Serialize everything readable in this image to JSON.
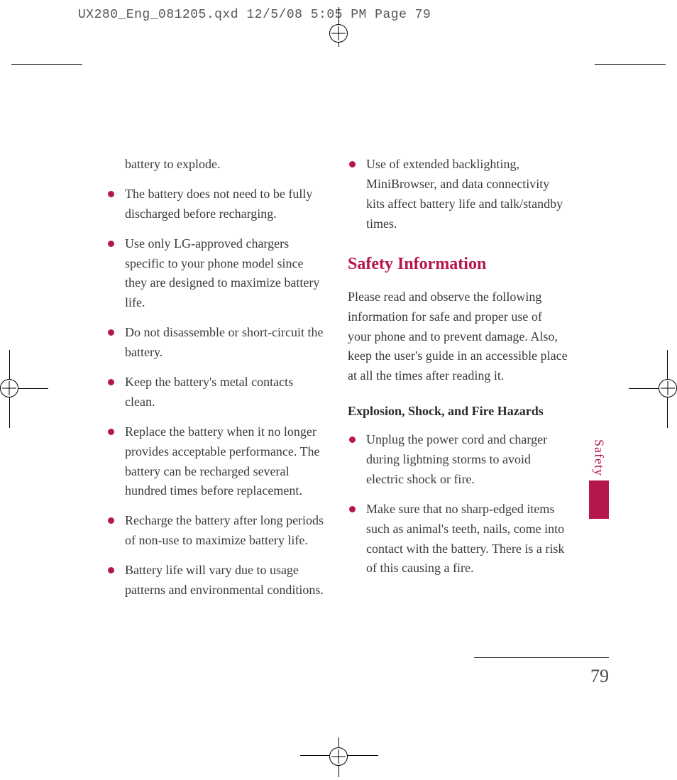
{
  "meta_header": "UX280_Eng_081205.qxd  12/5/08  5:05 PM  Page 79",
  "page_number": "79",
  "side_tab_label": "Safety",
  "accent_color": "#b6174b",
  "left_column": {
    "continuation": "battery to explode.",
    "bullets": [
      "The battery does not need to be fully discharged before recharging.",
      "Use only LG-approved chargers specific to your phone model since they are designed to maximize battery life.",
      "Do not disassemble or short-circuit the battery.",
      "Keep the battery's metal contacts clean.",
      "Replace the battery when it no longer provides acceptable performance. The battery can be recharged several hundred times before replacement.",
      "Recharge the battery after long periods of non-use to maximize battery life.",
      "Battery life will vary due to usage patterns and environmental conditions."
    ]
  },
  "right_column": {
    "top_bullets": [
      "Use of extended backlighting, MiniBrowser, and data connectivity kits affect battery life and talk/standby times."
    ],
    "section_title": "Safety Information",
    "intro_paragraph": "Please read and observe the following information for safe and proper use of your phone and to prevent damage. Also, keep the user's guide in an accessible place at all the times after reading it.",
    "subhead": "Explosion, Shock, and Fire Hazards",
    "sub_bullets": [
      "Unplug the power cord and charger during lightning storms to avoid electric shock or fire.",
      "Make sure that no sharp-edged items such as animal's teeth, nails, come into contact with the battery. There is a risk of this causing a fire."
    ]
  }
}
